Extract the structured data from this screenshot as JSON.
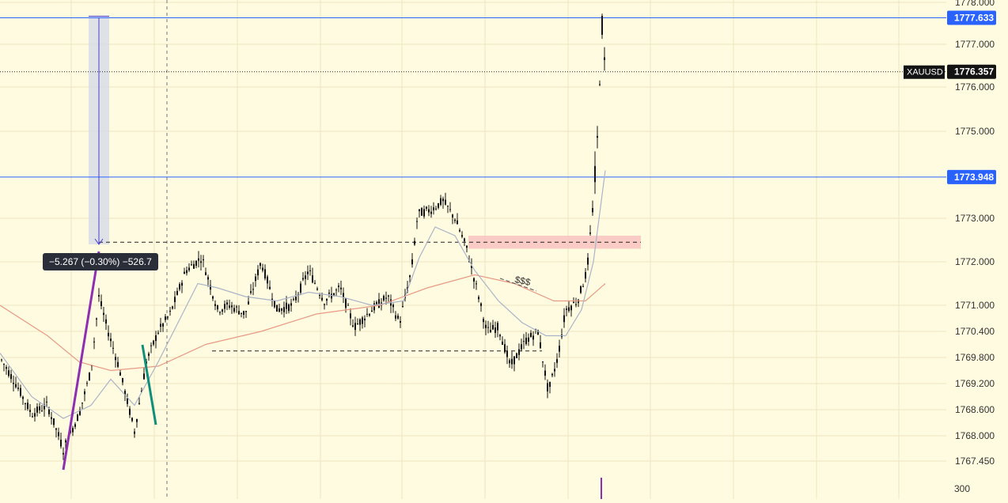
{
  "symbol": "XAUUSD",
  "measure_tooltip": "−5.267 (−0.30%) −526.7",
  "annotation_text": "$$$",
  "volume_axis_label": "300",
  "colors": {
    "background": "#fffbe0",
    "grid": "#ece6bf",
    "candle": "#131313",
    "ema_fast": "#a9b4c8",
    "ema_slow": "#e89a85",
    "h_line": "#2962ff",
    "label_blue": "#2962ff",
    "label_black": "#131313",
    "zone_red": "#f9c3c0",
    "trend_purple": "#8e2fb0",
    "trend_teal": "#0f8f7a"
  },
  "chart_data": {
    "type": "candlestick",
    "y_axis_ticks": [
      "1778.000",
      "1777.000",
      "1776.000",
      "1775.000",
      "1773.000",
      "1772.000",
      "1771.000",
      "1770.400",
      "1769.800",
      "1769.200",
      "1768.600",
      "1768.000",
      "1767.450"
    ],
    "ylim": [
      1767.2,
      1778.2
    ],
    "price_labels": [
      {
        "value": "1777.633",
        "style": "blue"
      },
      {
        "value": "1776.357",
        "style": "black"
      },
      {
        "value": "1773.948",
        "style": "blue"
      }
    ],
    "horizontal_lines": [
      1777.633,
      1773.948
    ],
    "current_price": 1776.357,
    "dashed_levels": [
      {
        "price": 1772.45,
        "x_start": 125,
        "x_end": 810
      },
      {
        "price": 1769.95,
        "x_start": 268,
        "x_end": 685
      }
    ],
    "supply_zone": {
      "top": 1772.6,
      "bottom": 1772.3,
      "x_start": 592,
      "x_end": 810
    },
    "measure": {
      "from_price": 1777.633,
      "to_price": 1772.4,
      "x": 125
    },
    "series_waypoints": [
      [
        0,
        1769.8
      ],
      [
        20,
        1769.2
      ],
      [
        40,
        1768.5
      ],
      [
        60,
        1768.7
      ],
      [
        80,
        1767.7
      ],
      [
        100,
        1768.5
      ],
      [
        115,
        1769.5
      ],
      [
        125,
        1771.2
      ],
      [
        135,
        1770.5
      ],
      [
        150,
        1769.6
      ],
      [
        170,
        1768.1
      ],
      [
        185,
        1769.7
      ],
      [
        200,
        1770.4
      ],
      [
        215,
        1770.8
      ],
      [
        235,
        1771.8
      ],
      [
        255,
        1772.1
      ],
      [
        275,
        1770.9
      ],
      [
        290,
        1771.0
      ],
      [
        310,
        1770.8
      ],
      [
        330,
        1772.0
      ],
      [
        350,
        1770.9
      ],
      [
        370,
        1771.0
      ],
      [
        390,
        1771.8
      ],
      [
        410,
        1771.1
      ],
      [
        430,
        1771.4
      ],
      [
        448,
        1770.5
      ],
      [
        470,
        1770.9
      ],
      [
        490,
        1771.2
      ],
      [
        505,
        1770.6
      ],
      [
        520,
        1771.8
      ],
      [
        528,
        1773.1
      ],
      [
        545,
        1773.2
      ],
      [
        560,
        1773.4
      ],
      [
        575,
        1773.0
      ],
      [
        590,
        1772.3
      ],
      [
        605,
        1771.2
      ],
      [
        615,
        1770.4
      ],
      [
        630,
        1770.5
      ],
      [
        645,
        1769.6
      ],
      [
        665,
        1770.2
      ],
      [
        680,
        1770.4
      ],
      [
        693,
        1769.0
      ],
      [
        705,
        1769.8
      ],
      [
        715,
        1770.9
      ],
      [
        730,
        1771.1
      ],
      [
        742,
        1771.8
      ],
      [
        750,
        1773.4
      ],
      [
        756,
        1775.0
      ],
      [
        758,
        1776.3
      ],
      [
        760,
        1777.3
      ],
      [
        762,
        1777.6
      ],
      [
        765,
        1776.0
      ]
    ],
    "ema_fast_waypoints": [
      [
        0,
        1769.9
      ],
      [
        40,
        1768.9
      ],
      [
        80,
        1768.4
      ],
      [
        115,
        1768.7
      ],
      [
        140,
        1769.3
      ],
      [
        170,
        1768.7
      ],
      [
        200,
        1769.7
      ],
      [
        225,
        1770.6
      ],
      [
        250,
        1771.5
      ],
      [
        275,
        1771.4
      ],
      [
        310,
        1771.2
      ],
      [
        350,
        1771.1
      ],
      [
        390,
        1771.3
      ],
      [
        430,
        1771.2
      ],
      [
        470,
        1771.0
      ],
      [
        510,
        1771.1
      ],
      [
        530,
        1772.1
      ],
      [
        550,
        1772.8
      ],
      [
        575,
        1772.6
      ],
      [
        600,
        1771.8
      ],
      [
        630,
        1771.1
      ],
      [
        660,
        1770.6
      ],
      [
        690,
        1770.3
      ],
      [
        715,
        1770.3
      ],
      [
        735,
        1770.9
      ],
      [
        750,
        1772.0
      ],
      [
        765,
        1774.1
      ]
    ],
    "ema_slow_waypoints": [
      [
        0,
        1771.0
      ],
      [
        60,
        1770.3
      ],
      [
        100,
        1769.7
      ],
      [
        140,
        1769.5
      ],
      [
        200,
        1769.6
      ],
      [
        260,
        1770.1
      ],
      [
        330,
        1770.4
      ],
      [
        400,
        1770.8
      ],
      [
        480,
        1771.0
      ],
      [
        540,
        1771.4
      ],
      [
        600,
        1771.7
      ],
      [
        650,
        1771.5
      ],
      [
        700,
        1771.1
      ],
      [
        740,
        1771.1
      ],
      [
        765,
        1771.5
      ]
    ]
  }
}
